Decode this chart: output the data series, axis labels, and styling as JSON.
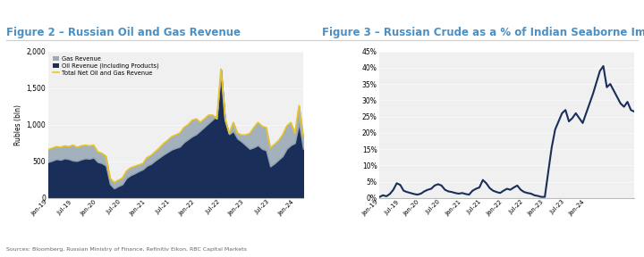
{
  "fig2_title": "Figure 2 – Russian Oil and Gas Revenue",
  "fig3_title": "Figure 3 – Russian Crude as a % of Indian Seaborne Imports",
  "source_text": "Sources: Bloomberg, Russian Ministry of Finance, Refinitiv Eikon, RBC Capital Markets",
  "fig2_ylabel": "Rubles (bln)",
  "fig2_ylim": [
    0,
    2000
  ],
  "fig2_yticks": [
    0,
    500,
    1000,
    1500,
    2000
  ],
  "fig3_ylim": [
    0,
    0.45
  ],
  "fig3_yticks": [
    0.0,
    0.05,
    0.1,
    0.15,
    0.2,
    0.25,
    0.3,
    0.35,
    0.4,
    0.45
  ],
  "color_gas": "#9baab8",
  "color_oil": "#1a2e5a",
  "color_total": "#e8c42a",
  "color_fig3_line": "#1a2e5a",
  "title_color": "#4a90c4",
  "bg_color": "#f0f0f0",
  "oil_revenue": [
    490,
    510,
    530,
    520,
    540,
    530,
    510,
    505,
    525,
    540,
    535,
    550,
    490,
    475,
    440,
    190,
    130,
    160,
    185,
    270,
    310,
    335,
    365,
    390,
    440,
    465,
    510,
    550,
    590,
    625,
    660,
    680,
    700,
    760,
    800,
    840,
    870,
    920,
    970,
    1020,
    1070,
    1120,
    1750,
    1050,
    870,
    910,
    810,
    770,
    720,
    670,
    690,
    720,
    670,
    650,
    430,
    470,
    520,
    570,
    670,
    720,
    750,
    1020,
    670
  ],
  "gas_revenue_top": [
    660,
    680,
    700,
    690,
    710,
    700,
    720,
    690,
    710,
    720,
    710,
    720,
    630,
    610,
    570,
    270,
    210,
    240,
    270,
    365,
    410,
    430,
    450,
    470,
    550,
    580,
    630,
    680,
    740,
    785,
    835,
    860,
    885,
    960,
    1000,
    1060,
    1080,
    1030,
    1080,
    1130,
    1130,
    1080,
    1760,
    1080,
    880,
    1030,
    885,
    860,
    860,
    880,
    960,
    1030,
    980,
    960,
    680,
    730,
    780,
    860,
    980,
    1030,
    880,
    1260,
    850
  ],
  "total_line": [
    660,
    680,
    700,
    690,
    710,
    700,
    720,
    690,
    710,
    720,
    710,
    720,
    630,
    610,
    570,
    270,
    210,
    240,
    270,
    365,
    410,
    430,
    450,
    470,
    550,
    580,
    630,
    680,
    740,
    785,
    835,
    860,
    885,
    960,
    1000,
    1060,
    1080,
    1030,
    1080,
    1130,
    1130,
    1080,
    1760,
    1080,
    880,
    1030,
    885,
    860,
    860,
    880,
    960,
    1030,
    980,
    960,
    680,
    730,
    780,
    860,
    980,
    1030,
    880,
    1260,
    850
  ],
  "fig3_values": [
    0.003,
    0.008,
    0.005,
    0.012,
    0.025,
    0.045,
    0.04,
    0.022,
    0.018,
    0.015,
    0.012,
    0.01,
    0.013,
    0.02,
    0.025,
    0.028,
    0.038,
    0.042,
    0.038,
    0.025,
    0.02,
    0.018,
    0.015,
    0.013,
    0.015,
    0.012,
    0.01,
    0.022,
    0.028,
    0.032,
    0.055,
    0.045,
    0.03,
    0.022,
    0.018,
    0.015,
    0.022,
    0.028,
    0.025,
    0.032,
    0.038,
    0.025,
    0.018,
    0.015,
    0.013,
    0.008,
    0.006,
    0.003,
    0.003,
    0.08,
    0.155,
    0.21,
    0.235,
    0.26,
    0.27,
    0.235,
    0.245,
    0.26,
    0.245,
    0.23,
    0.26,
    0.29,
    0.32,
    0.355,
    0.39,
    0.405,
    0.34,
    0.35,
    0.33,
    0.31,
    0.29,
    0.28,
    0.295,
    0.27,
    0.265
  ],
  "xtick_labels": [
    "Jan-19",
    "Jul-19",
    "Jan-20",
    "Jul-20",
    "Jan-21",
    "Jul-21",
    "Jan-22",
    "Jul-22",
    "Jan-23",
    "Jul-23",
    "Jan-24"
  ],
  "xtick_positions": [
    0,
    6,
    12,
    18,
    24,
    30,
    36,
    42,
    48,
    54,
    60
  ]
}
